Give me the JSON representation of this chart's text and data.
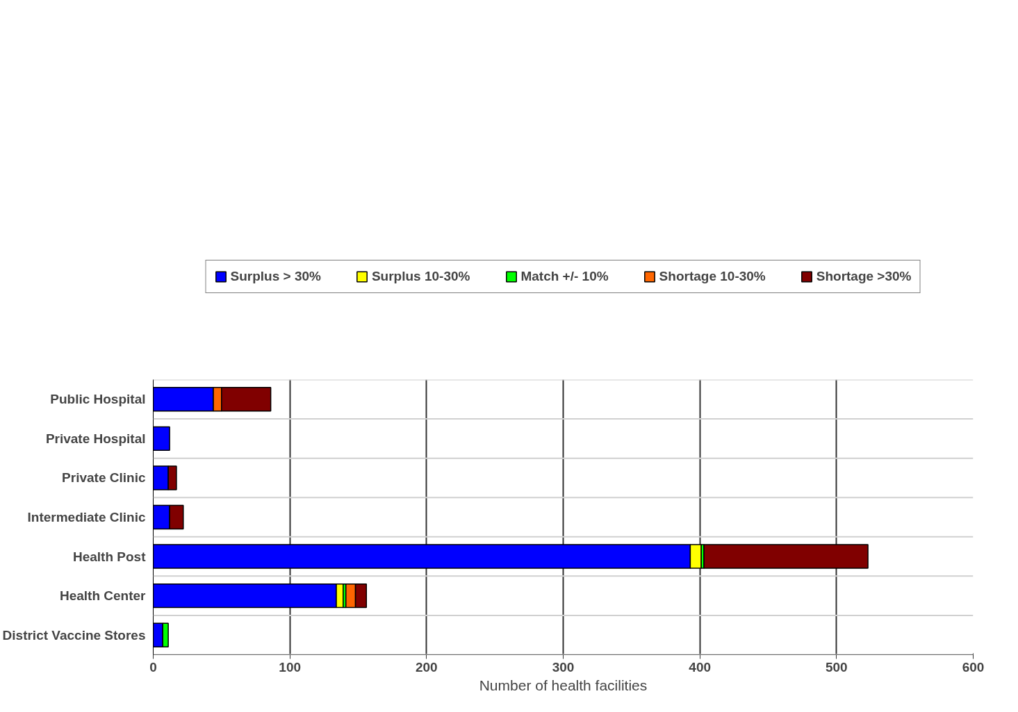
{
  "chart_data": {
    "type": "bar",
    "orientation": "horizontal",
    "stacked": true,
    "xlabel": "Number of health facilities",
    "categories": [
      "Public Hospital",
      "Private Hospital",
      "Private Clinic",
      "Intermediate Clinic",
      "Health Post",
      "Health Center",
      "District Vaccine Stores"
    ],
    "series": [
      {
        "name": "Surplus > 30%",
        "color": "#0000ff",
        "values": [
          44,
          12,
          11,
          12,
          393,
          134,
          7
        ]
      },
      {
        "name": "Surplus 10-30%",
        "color": "#ffff00",
        "values": [
          null,
          null,
          null,
          null,
          8,
          5,
          null
        ]
      },
      {
        "name": "Match +/- 10%",
        "color": "#00ff00",
        "values": [
          null,
          null,
          null,
          null,
          2,
          2,
          4
        ]
      },
      {
        "name": "Shortage 10-30%",
        "color": "#ff6600",
        "values": [
          6,
          null,
          null,
          null,
          null,
          7,
          null
        ]
      },
      {
        "name": "Shortage >30%",
        "color": "#800000",
        "values": [
          36,
          null,
          6,
          10,
          120,
          8,
          null
        ]
      }
    ],
    "xlim": [
      0,
      600
    ],
    "xticks": [
      0,
      100,
      200,
      300,
      400,
      500,
      600
    ],
    "grid": true,
    "legend": "top"
  }
}
